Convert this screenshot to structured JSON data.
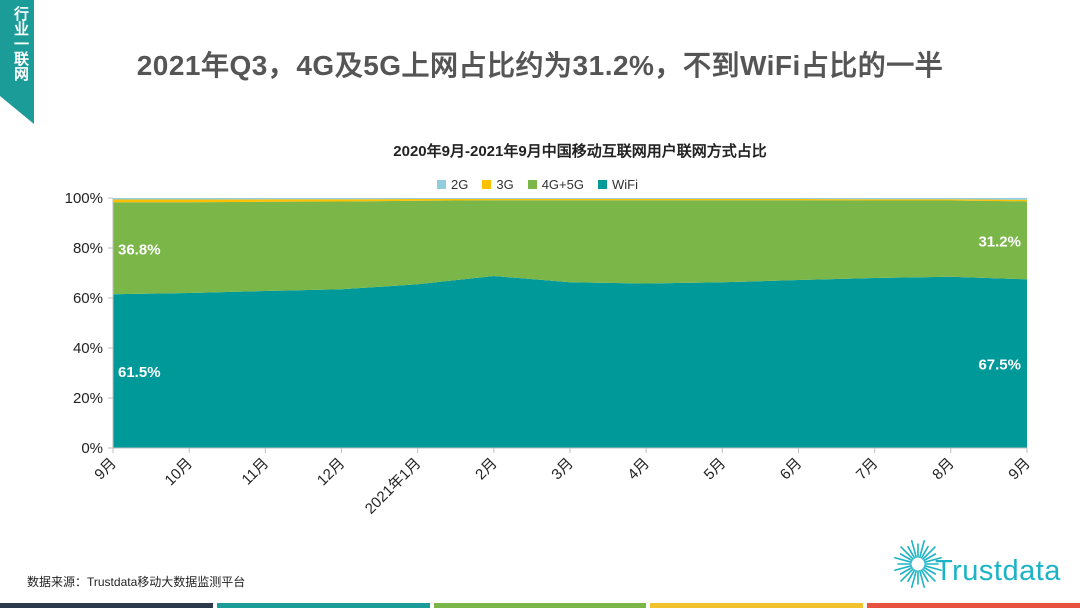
{
  "side_tab": {
    "label": "行业一联网"
  },
  "page_title": "2021年Q3，4G及5G上网占比约为31.2%，不到WiFi占比的一半",
  "source": "数据来源：Trustdata移动大数据监测平台",
  "logo": {
    "text": "Trustdata"
  },
  "footer_colors": [
    "#2a3a4a",
    "#1b9c98",
    "#7ab648",
    "#f2c12e",
    "#e8533f"
  ],
  "chart_data": {
    "type": "area",
    "stacked": true,
    "title": "2020年9月-2021年9月中国移动互联网用户联网方式占比",
    "categories": [
      "9月",
      "10月",
      "11月",
      "12月",
      "2021年1月",
      "2月",
      "3月",
      "4月",
      "5月",
      "6月",
      "7月",
      "8月",
      "9月"
    ],
    "ylim": [
      0,
      100
    ],
    "yticks": [
      "0%",
      "20%",
      "40%",
      "60%",
      "80%",
      "100%"
    ],
    "legend_position": "top",
    "series": [
      {
        "name": "WiFi",
        "color": "#009999",
        "values": [
          61.5,
          62.0,
          62.8,
          63.5,
          65.5,
          68.8,
          66.3,
          65.8,
          66.3,
          67.2,
          68.0,
          68.5,
          67.5
        ]
      },
      {
        "name": "4G+5G",
        "color": "#7ab648",
        "values": [
          36.8,
          36.3,
          35.7,
          35.1,
          33.4,
          30.3,
          32.8,
          33.3,
          32.8,
          31.9,
          31.0,
          30.5,
          31.2
        ]
      },
      {
        "name": "3G",
        "color": "#ffc000",
        "values": [
          1.1,
          1.1,
          1.0,
          0.9,
          0.7,
          0.5,
          0.5,
          0.5,
          0.5,
          0.5,
          0.5,
          0.5,
          0.6
        ]
      },
      {
        "name": "2G",
        "color": "#92cddc",
        "values": [
          0.6,
          0.6,
          0.5,
          0.5,
          0.4,
          0.4,
          0.4,
          0.4,
          0.4,
          0.4,
          0.5,
          0.5,
          0.7
        ]
      }
    ],
    "legend_order": [
      "2G",
      "3G",
      "4G+5G",
      "WiFi"
    ],
    "data_labels": [
      {
        "text": "36.8%",
        "series": "4G+5G",
        "index": 0
      },
      {
        "text": "61.5%",
        "series": "WiFi",
        "index": 0
      },
      {
        "text": "31.2%",
        "series": "4G+5G",
        "index": 12
      },
      {
        "text": "67.5%",
        "series": "WiFi",
        "index": 12
      }
    ]
  }
}
